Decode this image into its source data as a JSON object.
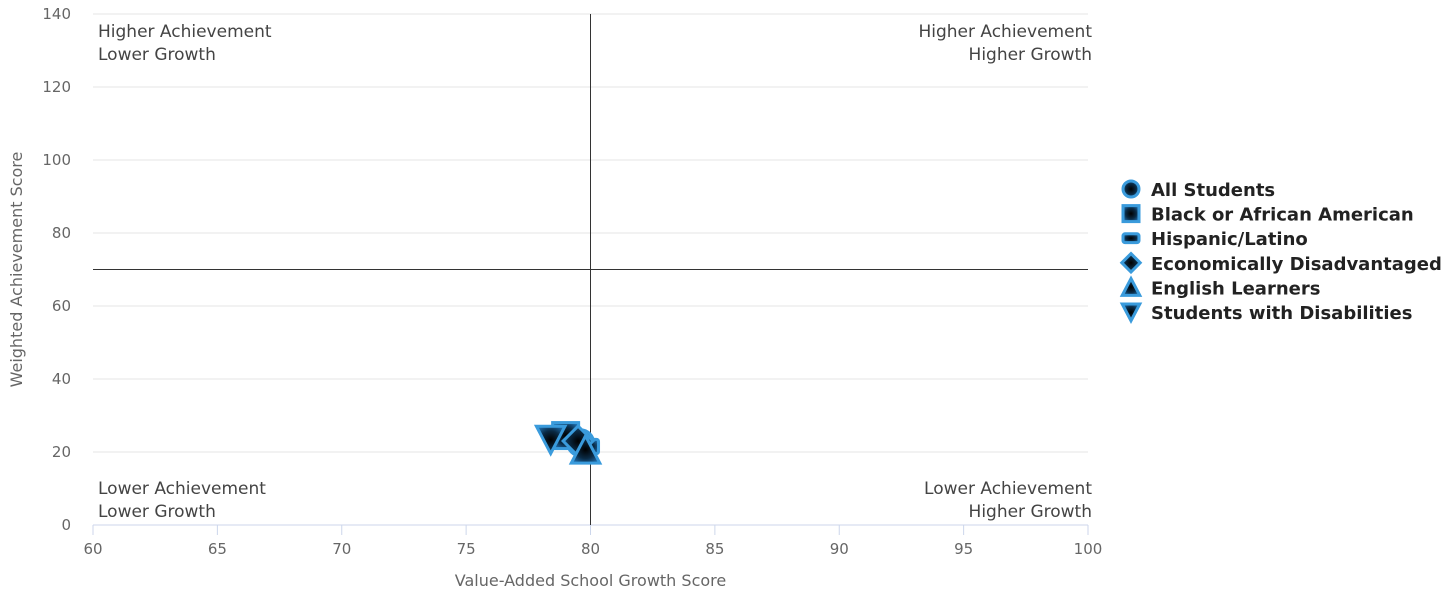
{
  "chart_data": {
    "type": "scatter",
    "xlabel": "Value-Added School Growth Score",
    "ylabel": "Weighted Achievement Score",
    "xlim": [
      60,
      100
    ],
    "ylim": [
      0,
      140
    ],
    "x_ticks": [
      60,
      65,
      70,
      75,
      80,
      85,
      90,
      95,
      100
    ],
    "y_ticks": [
      0,
      20,
      40,
      60,
      80,
      100,
      120,
      140
    ],
    "grid": true,
    "legend_position": "right",
    "reference_lines": {
      "x": 80,
      "y": 70
    },
    "quadrant_labels": {
      "top_left": [
        "Higher Achievement",
        "Lower Growth"
      ],
      "top_right": [
        "Higher Achievement",
        "Higher Growth"
      ],
      "bottom_left": [
        "Lower Achievement",
        "Lower Growth"
      ],
      "bottom_right": [
        "Lower Achievement",
        "Higher Growth"
      ]
    },
    "marker_color": "#3a9bdc",
    "series": [
      {
        "name": "All Students",
        "marker": "circle",
        "points": [
          {
            "x": 79.6,
            "y": 22.5
          }
        ]
      },
      {
        "name": "Black or African American",
        "marker": "square",
        "points": [
          {
            "x": 79.0,
            "y": 24.5
          }
        ]
      },
      {
        "name": "Hispanic/Latino",
        "marker": "rect",
        "points": [
          {
            "x": 79.8,
            "y": 21.5
          }
        ]
      },
      {
        "name": "Economically Disadvantaged",
        "marker": "diamond",
        "points": [
          {
            "x": 79.5,
            "y": 23.0
          }
        ]
      },
      {
        "name": "English Learners",
        "marker": "triangle",
        "points": [
          {
            "x": 79.8,
            "y": 20.5
          }
        ]
      },
      {
        "name": "Students with Disabilities",
        "marker": "triangle-down",
        "points": [
          {
            "x": 78.4,
            "y": 23.5
          }
        ]
      }
    ]
  }
}
